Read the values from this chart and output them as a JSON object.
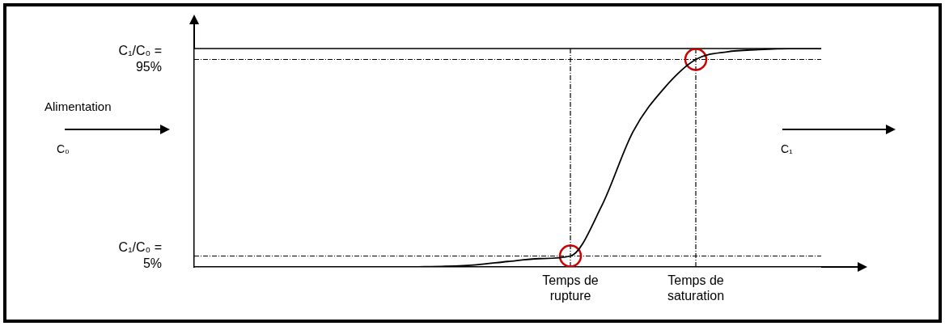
{
  "chart_data": {
    "type": "line",
    "categories": [
      null,
      null,
      null,
      null,
      null,
      null,
      null,
      null,
      null,
      null,
      null,
      null,
      "Temps de\nrupture",
      null,
      null,
      null,
      "Temps de\nsaturation",
      null,
      null,
      null,
      null
    ],
    "series": [
      {
        "color": "#000000",
        "marker": "none",
        "values": [
          null,
          null,
          null,
          null,
          null,
          null,
          null,
          0,
          0.3,
          1,
          2.5,
          3.8,
          5,
          28,
          62,
          82,
          95,
          98.5,
          99.5,
          100,
          100
        ]
      },
      {
        "type": "scatter",
        "color": "#cc0000",
        "marker": "circle",
        "x": [
          "Temps de\nrupture",
          "Temps de\nsaturation"
        ],
        "values": [
          5,
          95
        ]
      }
    ],
    "ylim": [
      0,
      100
    ],
    "yticks": [
      {
        "value": 5,
        "label": "C₁/C₀ =\n5%"
      },
      {
        "value": 95,
        "label": "C₁/C₀ =\n95%"
      }
    ],
    "ref_lines": [
      {
        "axis": "y",
        "value": 100,
        "line_style": "solid"
      },
      {
        "axis": "y",
        "value": 95,
        "line_style": "dashed"
      },
      {
        "axis": "y",
        "value": 5,
        "line_style": "dashed"
      },
      {
        "axis": "x",
        "value": "Temps de\nrupture",
        "line_style": "dashed"
      },
      {
        "axis": "x",
        "value": "Temps de\nsaturation",
        "line_style": "dashed"
      }
    ],
    "annotations": [
      "Alimentation",
      "C₀",
      "C₁"
    ],
    "grid": false,
    "legend": false
  }
}
